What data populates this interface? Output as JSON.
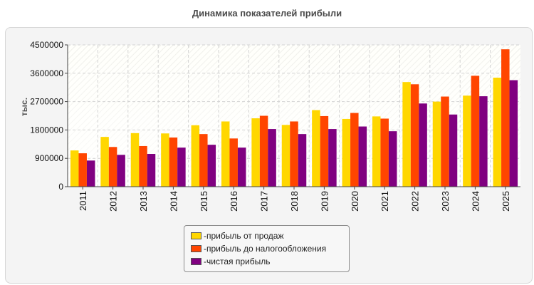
{
  "chart_data": {
    "type": "bar",
    "title": "Динамика показателей прибыли",
    "ylabel": "тыс.",
    "ylim": [
      0,
      4500000
    ],
    "yticks": [
      0,
      900000,
      1800000,
      2700000,
      3600000,
      4500000
    ],
    "ytick_labels": [
      "0",
      "900000",
      "1800000",
      "2700000",
      "3600000",
      "4500000"
    ],
    "categories": [
      "2011",
      "2012",
      "2013",
      "2014",
      "2015",
      "2016",
      "2017",
      "2018",
      "2019",
      "2020",
      "2021",
      "2022",
      "2023",
      "2024",
      "2025"
    ],
    "series": [
      {
        "name": "прибыль от продаж",
        "color": "#ffd700",
        "values": [
          1150000,
          1580000,
          1700000,
          1690000,
          1950000,
          2070000,
          2170000,
          1960000,
          2430000,
          2150000,
          2230000,
          3320000,
          2700000,
          2890000,
          3460000
        ]
      },
      {
        "name": "прибыль до налогообложения",
        "color": "#ff4500",
        "values": [
          1060000,
          1260000,
          1290000,
          1560000,
          1670000,
          1530000,
          2250000,
          2070000,
          2240000,
          2340000,
          2160000,
          3250000,
          2860000,
          3520000,
          4360000
        ]
      },
      {
        "name": "чистая прибыль",
        "color": "#800080",
        "values": [
          830000,
          1010000,
          1040000,
          1240000,
          1330000,
          1240000,
          1830000,
          1670000,
          1830000,
          1910000,
          1760000,
          2640000,
          2290000,
          2870000,
          3380000
        ]
      }
    ],
    "grid": true,
    "legend_position": "bottom-center"
  },
  "legend": {
    "prefix": "- "
  }
}
